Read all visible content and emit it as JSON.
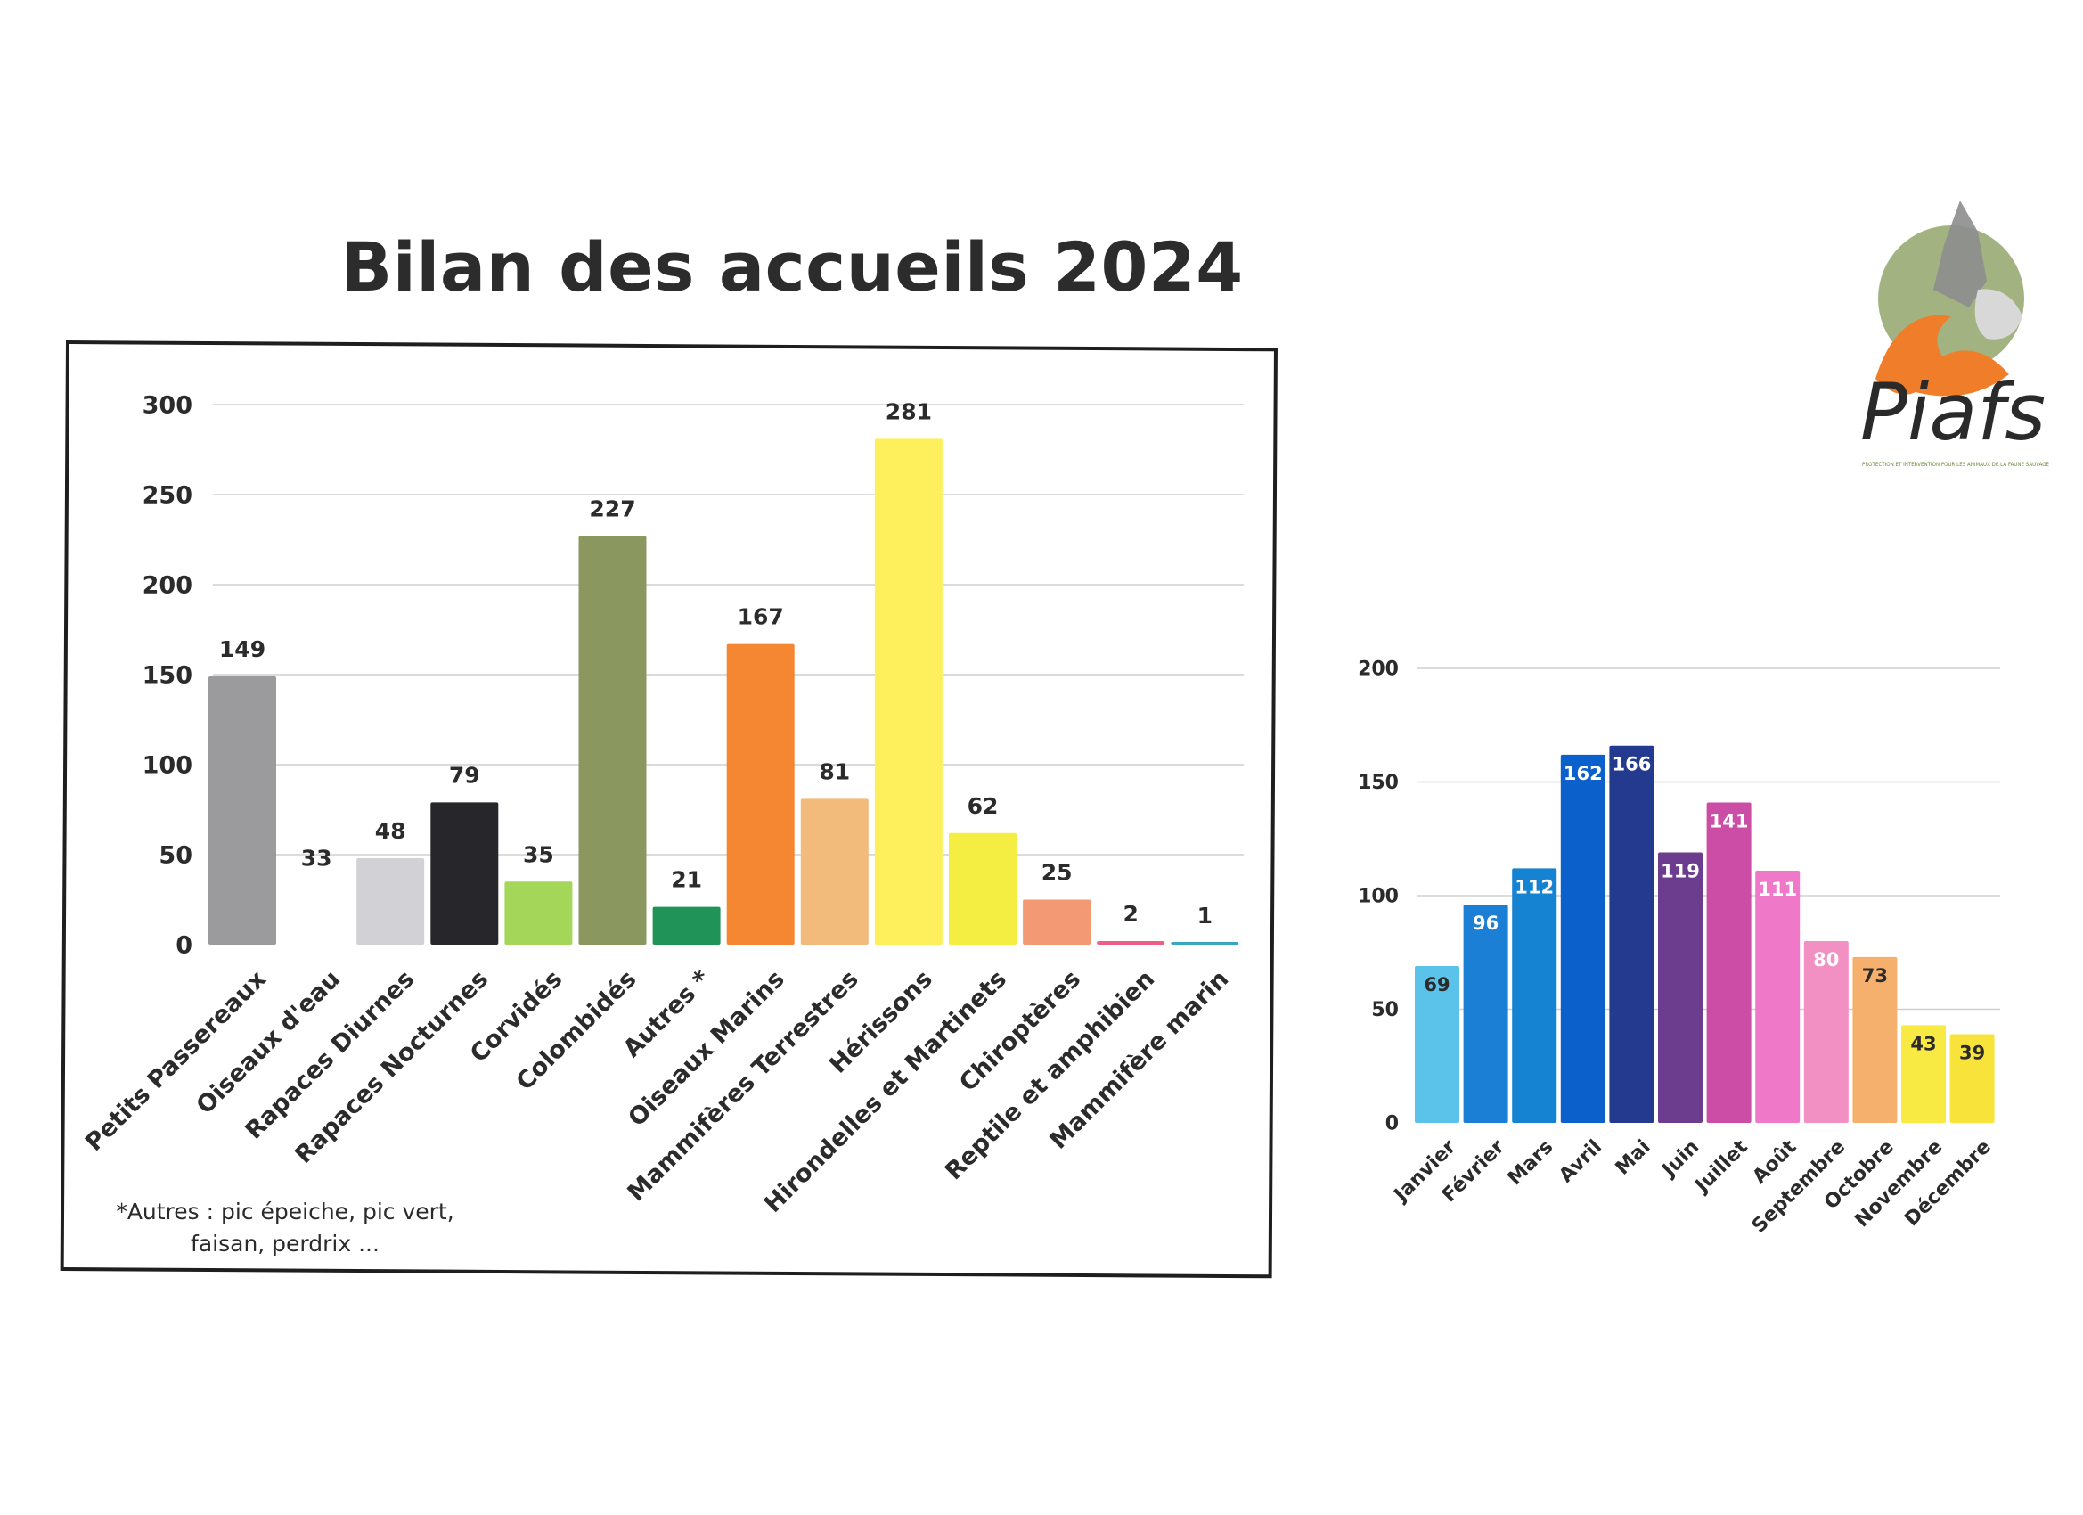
{
  "title": "Bilan des accueils 2024",
  "logo": {
    "text": "Piafs",
    "caption": "PROTECTION ET INTERVENTION POUR LES ANIMAUX DE LA FAUNE SAUVAGE"
  },
  "footnote": "*Autres : pic épeiche, pic vert, faisan, perdrix ...",
  "chart_data": [
    {
      "type": "bar",
      "categories": [
        "Petits Passereaux",
        "Oiseaux d'eau",
        "Rapaces Diurnes",
        "Rapaces Nocturnes",
        "Corvidés",
        "Colombidés",
        "Autres *",
        "Oiseaux Marins",
        "Mammifères Terrestres",
        "Hérissons",
        "Hirondelles et Martinets",
        "Chiroptères",
        "Reptile et amphibien",
        "Mammifère marin"
      ],
      "values": [
        149,
        33,
        48,
        79,
        35,
        227,
        21,
        167,
        81,
        281,
        62,
        25,
        2,
        1
      ],
      "colors": [
        "#9b9a9c",
        "#ffffff",
        "#d2d2d6",
        "#26262b",
        "#a4d65a",
        "#8a9860",
        "#1f9358",
        "#f58632",
        "#f2bb7b",
        "#fdf05c",
        "#f5ee42",
        "#f39a74",
        "#ee5f86",
        "#3aa7c0"
      ],
      "ylim": [
        0,
        300
      ],
      "yticks": [
        0,
        50,
        100,
        150,
        200,
        250,
        300
      ],
      "grid": true
    },
    {
      "type": "bar",
      "categories": [
        "Janvier",
        "Février",
        "Mars",
        "Avril",
        "Mai",
        "Juin",
        "Juillet",
        "Août",
        "Septembre",
        "Octobre",
        "Novembre",
        "Décembre"
      ],
      "values": [
        69,
        96,
        112,
        162,
        166,
        119,
        141,
        111,
        80,
        73,
        43,
        39
      ],
      "colors": [
        "#5bc3ea",
        "#1b7fd6",
        "#1683d2",
        "#0b60cc",
        "#243a8f",
        "#6c3c8e",
        "#cc4da6",
        "#ef79c8",
        "#f290c4",
        "#f5b06e",
        "#f8e943",
        "#f8e33a"
      ],
      "ylim": [
        0,
        200
      ],
      "yticks": [
        0,
        50,
        100,
        150,
        200
      ],
      "grid": true
    }
  ]
}
